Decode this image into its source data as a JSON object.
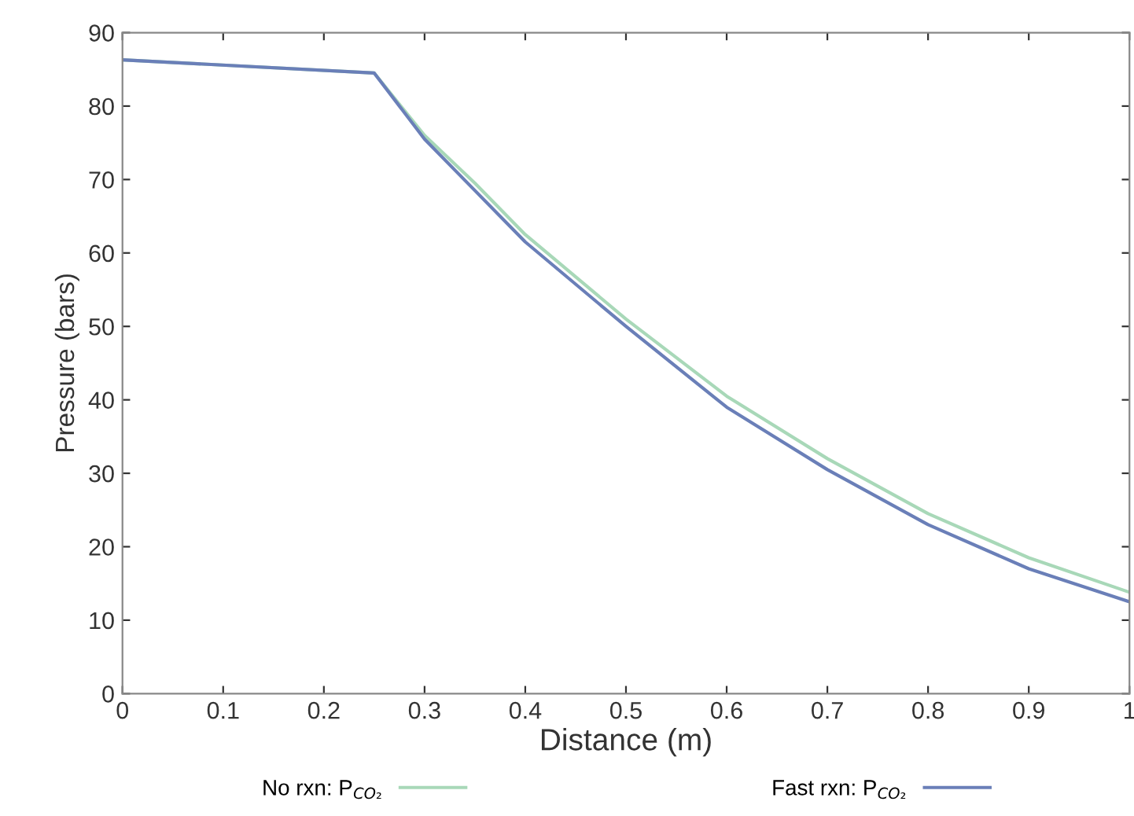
{
  "chart_data": {
    "type": "line",
    "xlabel": "Distance (m)",
    "ylabel": "Pressure (bars)",
    "x": [
      0,
      0.25,
      0.3,
      0.35,
      0.4,
      0.5,
      0.6,
      0.7,
      0.8,
      0.9,
      1.0
    ],
    "series": [
      {
        "name": "No rxn: P$_{CO₂}$",
        "color": "#a8d8b8",
        "values": [
          86.3,
          84.5,
          76,
          69.5,
          62.5,
          51,
          40.5,
          32,
          24.5,
          18.5,
          13.8
        ]
      },
      {
        "name": "Fast rxn: P$_{CO₂}$",
        "color": "#6a7fb8",
        "values": [
          86.3,
          84.5,
          75.5,
          68.5,
          61.5,
          50,
          39,
          30.5,
          23,
          17,
          12.5
        ]
      }
    ],
    "xlim": [
      0,
      1
    ],
    "ylim": [
      0,
      90
    ],
    "xticks": [
      0,
      0.1,
      0.2,
      0.3,
      0.4,
      0.5,
      0.6,
      0.7,
      0.8,
      0.9,
      1
    ],
    "yticks": [
      0,
      10,
      20,
      30,
      40,
      50,
      60,
      70,
      80,
      90
    ],
    "grid": false,
    "legend": "bottom",
    "line_style": "solid",
    "marker": "none"
  }
}
